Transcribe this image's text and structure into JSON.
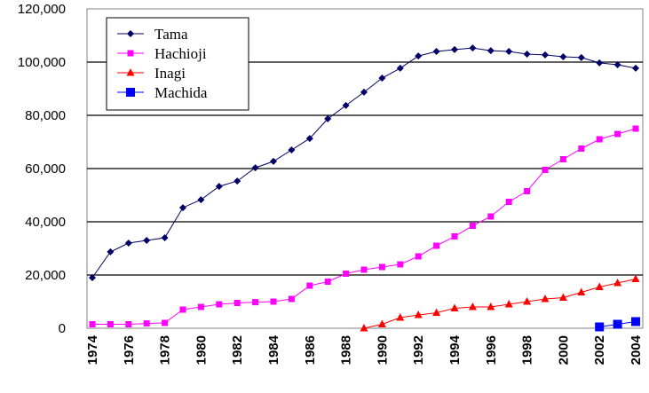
{
  "chart_data": {
    "type": "line",
    "categories": [
      "1974",
      null,
      "1976",
      null,
      "1978",
      null,
      "1980",
      null,
      "1982",
      null,
      "1984",
      null,
      "1986",
      null,
      "1988",
      null,
      "1990",
      null,
      "1992",
      null,
      "1994",
      null,
      "1996",
      null,
      "1998",
      null,
      "2000",
      null,
      "2002",
      null,
      "2004"
    ],
    "series": [
      {
        "name": "Tama",
        "color": "#000066",
        "marker": "diamond",
        "values": [
          19000,
          28700,
          32000,
          33000,
          34000,
          45300,
          48300,
          53300,
          55300,
          60300,
          62700,
          67000,
          71300,
          78700,
          83700,
          88700,
          94000,
          97700,
          102300,
          104000,
          104700,
          105300,
          104300,
          104000,
          103000,
          102700,
          102000,
          101700,
          99700,
          99000,
          97700
        ]
      },
      {
        "name": "Hachioji",
        "color": "#ff00ff",
        "marker": "square",
        "values": [
          1500,
          1500,
          1500,
          1800,
          2000,
          7000,
          8000,
          9000,
          9500,
          9800,
          10000,
          11000,
          16000,
          17500,
          20500,
          22000,
          23000,
          24000,
          27000,
          31000,
          34500,
          38500,
          42000,
          47500,
          51500,
          59500,
          63500,
          67500,
          71000,
          73000,
          75000
        ]
      },
      {
        "name": "Inagi",
        "color": "#ff0000",
        "marker": "triangle",
        "values": [
          null,
          null,
          null,
          null,
          null,
          null,
          null,
          null,
          null,
          null,
          null,
          null,
          null,
          null,
          null,
          0,
          1500,
          4000,
          5000,
          5800,
          7500,
          8000,
          8000,
          9000,
          10000,
          11000,
          11500,
          13500,
          15500,
          17000,
          18500
        ]
      },
      {
        "name": "Machida",
        "color": "#0000ff",
        "marker": "bigsquare",
        "values": [
          null,
          null,
          null,
          null,
          null,
          null,
          null,
          null,
          null,
          null,
          null,
          null,
          null,
          null,
          null,
          null,
          null,
          null,
          null,
          null,
          null,
          null,
          null,
          null,
          null,
          null,
          null,
          null,
          500,
          1500,
          2500
        ]
      }
    ],
    "ylim": [
      0,
      120000
    ],
    "yticks": [
      0,
      {
        "value": 20000,
        "label": "20,000"
      },
      {
        "value": 40000,
        "label": "40,000"
      },
      {
        "value": 60000,
        "label": "60,000"
      },
      {
        "value": 80000,
        "label": "80,000"
      },
      {
        "value": 100000,
        "label": "100,000"
      },
      {
        "value": 120000,
        "label": "120,000"
      }
    ],
    "grid": true,
    "legend": "upper left"
  }
}
